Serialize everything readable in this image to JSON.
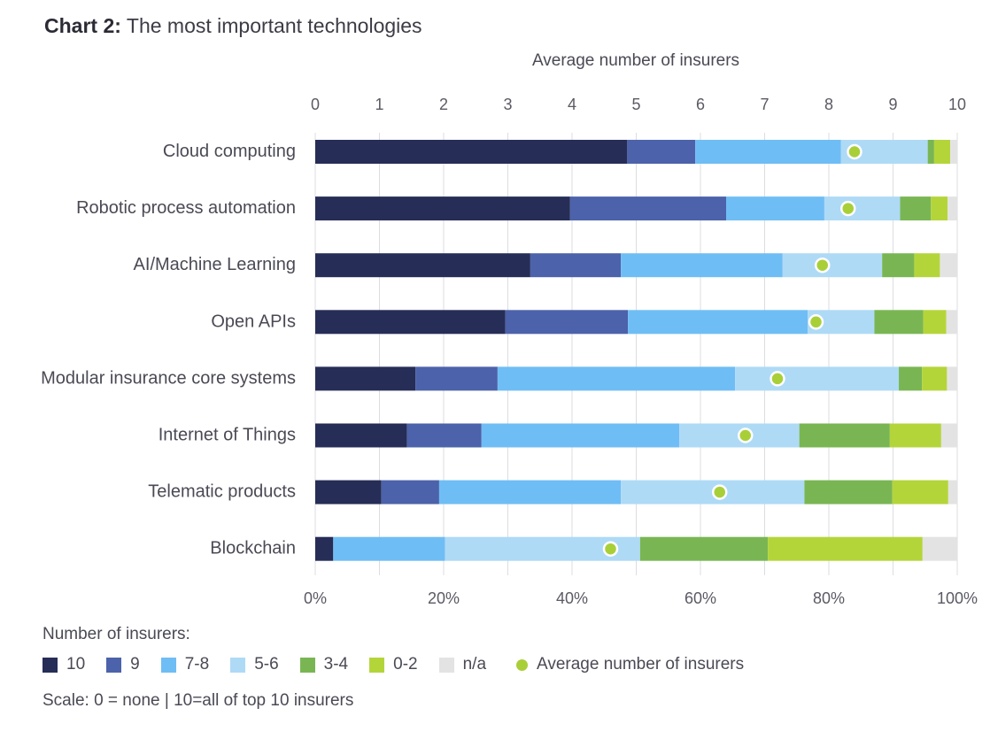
{
  "title": {
    "bold": "Chart 2:",
    "text": "The most important technologies"
  },
  "chart_data": {
    "type": "bar",
    "orientation": "horizontal",
    "stacked": true,
    "top_axis_label": "Average number of insurers",
    "top_axis_ticks": [
      "0",
      "1",
      "2",
      "3",
      "4",
      "5",
      "6",
      "7",
      "8",
      "9",
      "10"
    ],
    "bottom_axis_ticks": [
      "0%",
      "20%",
      "40%",
      "60%",
      "80%",
      "100%"
    ],
    "xlim": [
      0,
      100
    ],
    "grid": true,
    "legend_title": "Number of insurers:",
    "legend_position": "bottom-left",
    "note": "Scale: 0 = none | 10=all of top 10 insurers",
    "categories": [
      "Cloud computing",
      "Robotic process automation",
      "AI/Machine Learning",
      "Open APIs",
      "Modular insurance core systems",
      "Internet of Things",
      "Telematic products",
      "Blockchain"
    ],
    "series": [
      {
        "name": "10",
        "color": "#262d57",
        "values": [
          48.6,
          39.7,
          33.5,
          29.6,
          15.6,
          14.3,
          10.3,
          2.8
        ]
      },
      {
        "name": "9",
        "color": "#4c62aa",
        "values": [
          10.6,
          24.3,
          14.1,
          19.1,
          12.8,
          11.6,
          9.0,
          0.0
        ]
      },
      {
        "name": "7-8",
        "color": "#6fbdf5",
        "values": [
          22.7,
          15.3,
          25.2,
          28.0,
          37.0,
          30.8,
          28.3,
          17.4
        ]
      },
      {
        "name": "5-6",
        "color": "#aedaf6",
        "values": [
          13.5,
          11.8,
          15.5,
          10.4,
          25.5,
          18.7,
          28.6,
          30.4
        ]
      },
      {
        "name": "3-4",
        "color": "#79b653",
        "values": [
          1.0,
          4.8,
          5.0,
          7.6,
          3.6,
          14.1,
          13.7,
          19.9
        ]
      },
      {
        "name": "0-2",
        "color": "#b4d53a",
        "values": [
          2.5,
          2.6,
          4.0,
          3.6,
          3.9,
          8.0,
          8.7,
          24.1
        ]
      },
      {
        "name": "n/a",
        "color": "#e3e3e3",
        "values": [
          1.1,
          1.5,
          2.7,
          1.7,
          1.6,
          2.5,
          1.4,
          5.4
        ]
      }
    ],
    "average": {
      "name": "Average number of insurers",
      "color": "#a9cf38",
      "values": [
        8.4,
        8.3,
        7.9,
        7.8,
        7.2,
        6.7,
        6.3,
        4.6
      ]
    }
  }
}
